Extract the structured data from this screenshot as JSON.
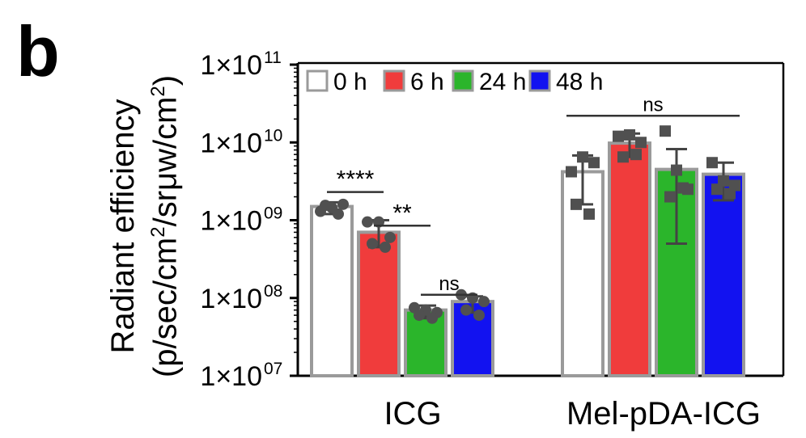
{
  "panel_label": "b",
  "colors": {
    "0 h": "#ffffff",
    "6 h": "#f03c3c",
    "24 h": "#2bb52b",
    "48 h": "#1212f0",
    "bar_edge": "#9a9a9a",
    "points": "#505050"
  },
  "chart_data": {
    "type": "bar",
    "title": "",
    "xlabel": "",
    "ylabel_line1": "Radiant efficiency",
    "ylabel_line2_parts": [
      "(p/sec/cm",
      "2",
      "/srμw/cm",
      "2",
      ")"
    ],
    "yscale": "log",
    "ylim": [
      10000000,
      100000000000
    ],
    "yticks": [
      {
        "mant": "1×10",
        "exp": "07"
      },
      {
        "mant": "1×10",
        "exp": "08"
      },
      {
        "mant": "1×10",
        "exp": "09"
      },
      {
        "mant": "1×10",
        "exp": "10"
      },
      {
        "mant": "1×10",
        "exp": "11"
      }
    ],
    "legend_position": "top",
    "categories": [
      "ICG",
      "Mel-pDA-ICG"
    ],
    "series": [
      {
        "name": "0 h",
        "values": [
          1500000000,
          4200000000
        ],
        "err_low": [
          1200000000,
          1600000000
        ],
        "err_high": [
          1700000000,
          6800000000
        ],
        "points": [
          [
            1300000000,
            1450000000,
            1600000000,
            1550000000,
            1200000000
          ],
          [
            4200000000,
            6500000000,
            5500000000,
            1600000000,
            1200000000
          ]
        ]
      },
      {
        "name": "6 h",
        "values": [
          700000000,
          9800000000
        ],
        "err_low": [
          450000000,
          6500000000
        ],
        "err_high": [
          1000000000,
          13000000000
        ],
        "points": [
          [
            950000000,
            950000000,
            600000000,
            500000000,
            450000000
          ],
          [
            12000000000,
            12500000000,
            10000000000,
            6500000000,
            7000000000
          ]
        ]
      },
      {
        "name": "24 h",
        "values": [
          70000000,
          4500000000
        ],
        "err_low": [
          55000000,
          500000000
        ],
        "err_high": [
          80000000,
          8200000000
        ],
        "points": [
          [
            75000000,
            70000000,
            65000000,
            60000000,
            55000000
          ],
          [
            14000000000,
            4400000000,
            2500000000,
            2000000000,
            2600000000
          ]
        ]
      },
      {
        "name": "48 h",
        "values": [
          90000000,
          3900000000
        ],
        "err_low": [
          65000000,
          1800000000
        ],
        "err_high": [
          105000000,
          5500000000
        ],
        "points": [
          [
            110000000,
            100000000,
            90000000,
            70000000,
            60000000
          ],
          [
            5500000000,
            3200000000,
            2800000000,
            2500000000,
            2200000000
          ]
        ]
      }
    ],
    "annotations": [
      {
        "text": "****",
        "group": 0,
        "from": 0,
        "to": 1,
        "level": 2300000000
      },
      {
        "text": "**",
        "group": 0,
        "from": 1,
        "to": 2,
        "level": 850000000
      },
      {
        "text": "ns",
        "group": 0,
        "from": 2,
        "to": 3,
        "level": 110000000
      },
      {
        "text": "ns",
        "group": 1,
        "from": 0,
        "to": 3,
        "level": 22000000000
      }
    ]
  }
}
